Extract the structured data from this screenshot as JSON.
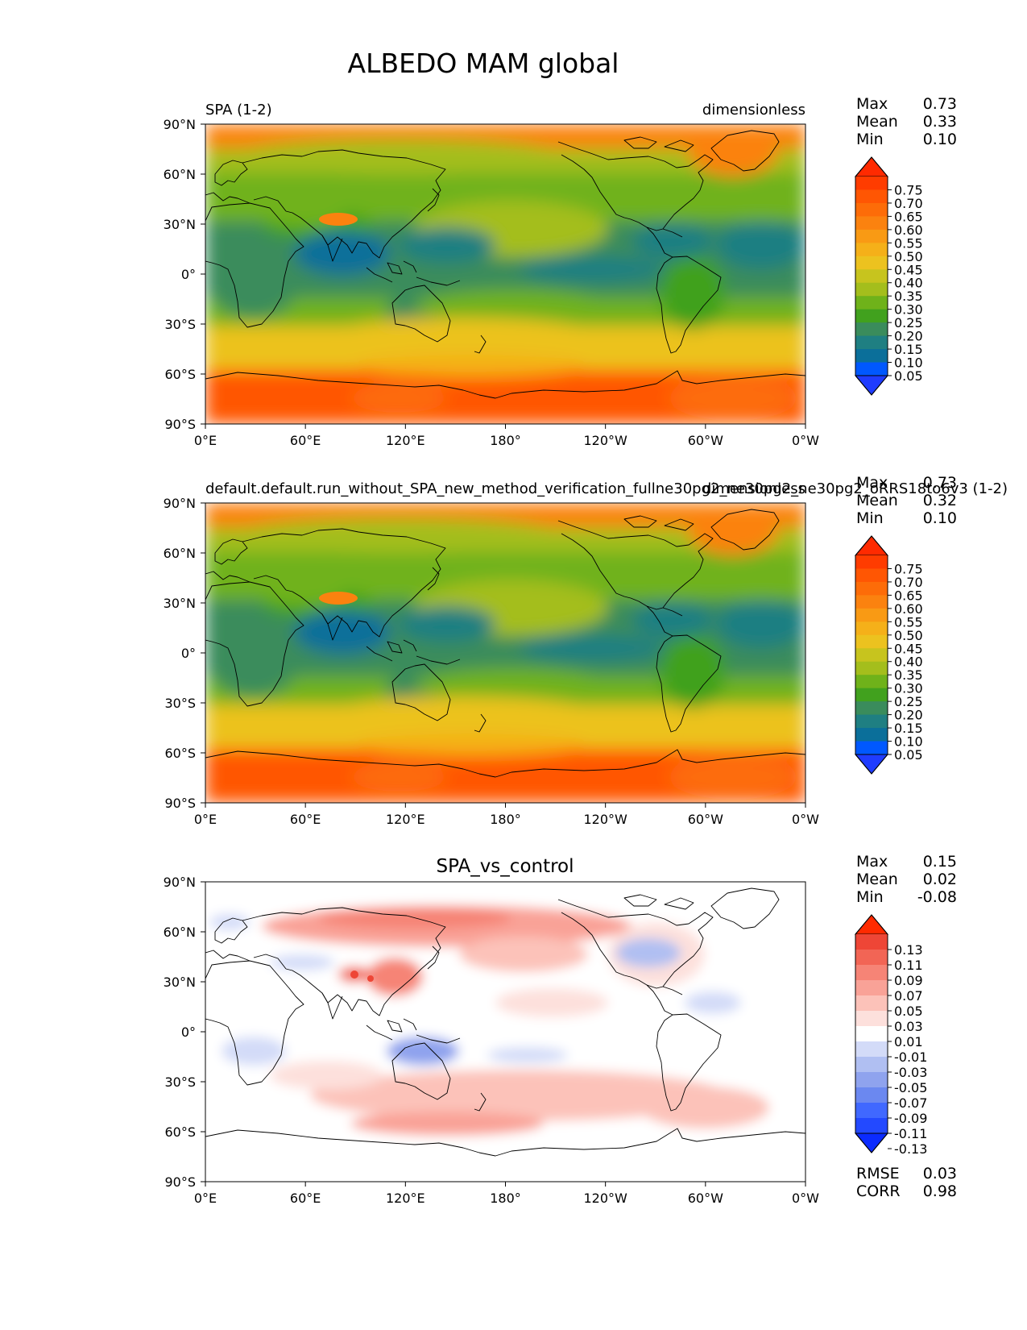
{
  "title": "ALBEDO MAM global",
  "x_ticks": [
    "0°E",
    "60°E",
    "120°E",
    "180°",
    "120°W",
    "60°W",
    "0°W"
  ],
  "y_ticks": [
    "90°N",
    "60°N",
    "30°N",
    "0°",
    "30°S",
    "60°S",
    "90°S"
  ],
  "stat_labels": {
    "max": "Max",
    "mean": "Mean",
    "min": "Min",
    "rmse": "RMSE",
    "corr": "CORR"
  },
  "colors": {
    "main_levels": [
      "#1f3cff",
      "#0058ff",
      "#0b6f9a",
      "#1f7f82",
      "#3a8c5c",
      "#41a11e",
      "#6fb21a",
      "#a4be1c",
      "#c7c41e",
      "#ecc21f",
      "#f5b019",
      "#f99a14",
      "#fb820f",
      "#fd6c08",
      "#ff5603",
      "#ff3c00",
      "#ff2a00"
    ],
    "diff_levels": [
      "#0b2bff",
      "#2349ff",
      "#4068ff",
      "#6b88f0",
      "#8fa3ee",
      "#b0bff2",
      "#d3dbf8",
      "#ffffff",
      "#fde0dc",
      "#fcc2b9",
      "#f9a297",
      "#f68476",
      "#f26555",
      "#ee4636",
      "#ff2a00"
    ],
    "coast": "#000000"
  },
  "panels": [
    {
      "left_title": "SPA (1-2)",
      "center_title": "",
      "right_title": "dimensionless",
      "stats": {
        "max": "0.73",
        "mean": "0.33",
        "min": "0.10"
      },
      "colorbar_ticks": [
        "0.75",
        "0.70",
        "0.65",
        "0.60",
        "0.55",
        "0.50",
        "0.45",
        "0.40",
        "0.35",
        "0.30",
        "0.25",
        "0.20",
        "0.15",
        "0.10",
        "0.05"
      ]
    },
    {
      "left_title": "default.default.run_without_SPA_new_method_verification_fullne30pg2_ne30pg2_ne30pg2_oRRS18to6v3 (1-2)",
      "center_title": "",
      "right_title": "dimensionless",
      "stats": {
        "max": "0.73",
        "mean": "0.32",
        "min": "0.10"
      },
      "colorbar_ticks": [
        "0.75",
        "0.70",
        "0.65",
        "0.60",
        "0.55",
        "0.50",
        "0.45",
        "0.40",
        "0.35",
        "0.30",
        "0.25",
        "0.20",
        "0.15",
        "0.10",
        "0.05"
      ]
    },
    {
      "left_title": "",
      "center_title": "SPA_vs_control",
      "right_title": "",
      "stats": {
        "max": "0.15",
        "mean": "0.02",
        "min": "-0.08"
      },
      "extra_stats": {
        "rmse": "0.03",
        "corr": "0.98"
      },
      "colorbar_ticks": [
        "0.13",
        "0.11",
        "0.09",
        "0.07",
        "0.05",
        "0.03",
        "0.01",
        "-0.01",
        "-0.03",
        "-0.05",
        "-0.07",
        "-0.09",
        "-0.11",
        "-0.13"
      ]
    }
  ],
  "chart_data": {
    "type": "heatmap",
    "title": "ALBEDO MAM global",
    "xlim": [
      0,
      360
    ],
    "ylim": [
      -90,
      90
    ],
    "x": [
      "0°E",
      "60°E",
      "120°E",
      "180°",
      "120°W",
      "60°W",
      "0°W"
    ],
    "y": [
      "90°N",
      "60°N",
      "30°N",
      "0°",
      "30°S",
      "60°S",
      "90°S"
    ],
    "series": [
      {
        "name": "SPA (1-2)",
        "units": "dimensionless",
        "max": 0.73,
        "mean": 0.33,
        "min": 0.1,
        "levels": [
          0.05,
          0.1,
          0.15,
          0.2,
          0.25,
          0.3,
          0.35,
          0.4,
          0.45,
          0.5,
          0.55,
          0.6,
          0.65,
          0.7,
          0.75
        ]
      },
      {
        "name": "default.default.run_without_SPA_new_method_verification_fullne30pg2_ne30pg2_ne30pg2_oRRS18to6v3 (1-2)",
        "units": "dimensionless",
        "max": 0.73,
        "mean": 0.32,
        "min": 0.1,
        "levels": [
          0.05,
          0.1,
          0.15,
          0.2,
          0.25,
          0.3,
          0.35,
          0.4,
          0.45,
          0.5,
          0.55,
          0.6,
          0.65,
          0.7,
          0.75
        ]
      },
      {
        "name": "SPA_vs_control",
        "max": 0.15,
        "mean": 0.02,
        "min": -0.08,
        "rmse": 0.03,
        "corr": 0.98,
        "levels": [
          -0.13,
          -0.11,
          -0.09,
          -0.07,
          -0.05,
          -0.03,
          -0.01,
          0.01,
          0.03,
          0.05,
          0.07,
          0.09,
          0.11,
          0.13
        ]
      }
    ],
    "grid": false
  }
}
